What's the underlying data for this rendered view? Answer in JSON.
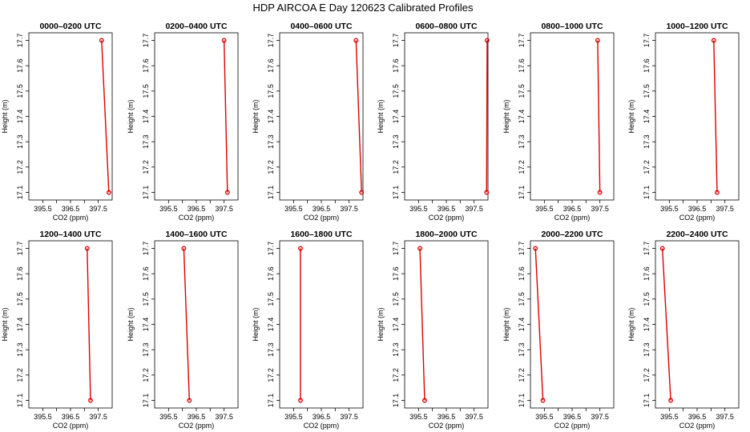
{
  "title": "HDP AIRCOA E  Day 120623  Calibrated Profiles",
  "colors": {
    "series": "#dd0000",
    "axis": "#000000"
  },
  "chart_data": [
    {
      "type": "line",
      "title": "0000–0200 UTC",
      "xlabel": "CO2 (ppm)",
      "ylabel": "Height (m)",
      "xlim": [
        395.0,
        398.0
      ],
      "ylim": [
        17.07,
        17.73
      ],
      "xticks": [
        "395.5",
        "396.5",
        "397.5"
      ],
      "yticks": [
        "17.1",
        "17.2",
        "17.3",
        "17.4",
        "17.5",
        "17.6",
        "17.7"
      ],
      "points": [
        {
          "x": 397.88,
          "y": 17.1
        },
        {
          "x": 397.62,
          "y": 17.7
        }
      ]
    },
    {
      "type": "line",
      "title": "0200–0400 UTC",
      "xlabel": "CO2 (ppm)",
      "ylabel": "Height (m)",
      "xlim": [
        395.0,
        398.0
      ],
      "ylim": [
        17.07,
        17.73
      ],
      "xticks": [
        "395.5",
        "396.5",
        "397.5"
      ],
      "yticks": [
        "17.1",
        "17.2",
        "17.3",
        "17.4",
        "17.5",
        "17.6",
        "17.7"
      ],
      "points": [
        {
          "x": 397.62,
          "y": 17.1
        },
        {
          "x": 397.5,
          "y": 17.7
        }
      ]
    },
    {
      "type": "line",
      "title": "0400–0600 UTC",
      "xlabel": "CO2 (ppm)",
      "ylabel": "Height (m)",
      "xlim": [
        395.0,
        398.0
      ],
      "ylim": [
        17.07,
        17.73
      ],
      "xticks": [
        "395.5",
        "396.5",
        "397.5"
      ],
      "yticks": [
        "17.1",
        "17.2",
        "17.3",
        "17.4",
        "17.5",
        "17.6",
        "17.7"
      ],
      "points": [
        {
          "x": 397.95,
          "y": 17.1
        },
        {
          "x": 397.75,
          "y": 17.7
        }
      ]
    },
    {
      "type": "line",
      "title": "0600–0800 UTC",
      "xlabel": "CO2 (ppm)",
      "ylabel": "Height (m)",
      "xlim": [
        395.0,
        398.0
      ],
      "ylim": [
        17.07,
        17.73
      ],
      "xticks": [
        "395.5",
        "396.5",
        "397.5"
      ],
      "yticks": [
        "17.1",
        "17.2",
        "17.3",
        "17.4",
        "17.5",
        "17.6",
        "17.7"
      ],
      "points": [
        {
          "x": 397.95,
          "y": 17.1
        },
        {
          "x": 397.97,
          "y": 17.7
        }
      ]
    },
    {
      "type": "line",
      "title": "0800–1000 UTC",
      "xlabel": "CO2 (ppm)",
      "ylabel": "Height (m)",
      "xlim": [
        395.0,
        398.0
      ],
      "ylim": [
        17.07,
        17.73
      ],
      "xticks": [
        "395.5",
        "396.5",
        "397.5"
      ],
      "yticks": [
        "17.1",
        "17.2",
        "17.3",
        "17.4",
        "17.5",
        "17.6",
        "17.7"
      ],
      "points": [
        {
          "x": 397.5,
          "y": 17.1
        },
        {
          "x": 397.42,
          "y": 17.7
        }
      ]
    },
    {
      "type": "line",
      "title": "1000–1200 UTC",
      "xlabel": "CO2 (ppm)",
      "ylabel": "Height (m)",
      "xlim": [
        395.0,
        398.0
      ],
      "ylim": [
        17.07,
        17.73
      ],
      "xticks": [
        "395.5",
        "396.5",
        "397.5"
      ],
      "yticks": [
        "17.1",
        "17.2",
        "17.3",
        "17.4",
        "17.5",
        "17.6",
        "17.7"
      ],
      "points": [
        {
          "x": 397.22,
          "y": 17.1
        },
        {
          "x": 397.1,
          "y": 17.7
        }
      ]
    },
    {
      "type": "line",
      "title": "1200–1400 UTC",
      "xlabel": "CO2 (ppm)",
      "ylabel": "Height (m)",
      "xlim": [
        395.0,
        398.0
      ],
      "ylim": [
        17.07,
        17.73
      ],
      "xticks": [
        "395.5",
        "396.5",
        "397.5"
      ],
      "yticks": [
        "17.1",
        "17.2",
        "17.3",
        "17.4",
        "17.5",
        "17.6",
        "17.7"
      ],
      "points": [
        {
          "x": 397.22,
          "y": 17.1
        },
        {
          "x": 397.1,
          "y": 17.7
        }
      ]
    },
    {
      "type": "line",
      "title": "1400–1600 UTC",
      "xlabel": "CO2 (ppm)",
      "ylabel": "Height (m)",
      "xlim": [
        395.0,
        398.0
      ],
      "ylim": [
        17.07,
        17.73
      ],
      "xticks": [
        "395.5",
        "396.5",
        "397.5"
      ],
      "yticks": [
        "17.1",
        "17.2",
        "17.3",
        "17.4",
        "17.5",
        "17.6",
        "17.7"
      ],
      "points": [
        {
          "x": 396.25,
          "y": 17.1
        },
        {
          "x": 396.05,
          "y": 17.7
        }
      ]
    },
    {
      "type": "line",
      "title": "1600–1800 UTC",
      "xlabel": "CO2 (ppm)",
      "ylabel": "Height (m)",
      "xlim": [
        395.0,
        398.0
      ],
      "ylim": [
        17.07,
        17.73
      ],
      "xticks": [
        "395.5",
        "396.5",
        "397.5"
      ],
      "yticks": [
        "17.1",
        "17.2",
        "17.3",
        "17.4",
        "17.5",
        "17.6",
        "17.7"
      ],
      "points": [
        {
          "x": 395.75,
          "y": 17.1
        },
        {
          "x": 395.75,
          "y": 17.7
        }
      ]
    },
    {
      "type": "line",
      "title": "1800–2000 UTC",
      "xlabel": "CO2 (ppm)",
      "ylabel": "Height (m)",
      "xlim": [
        395.0,
        398.0
      ],
      "ylim": [
        17.07,
        17.73
      ],
      "xticks": [
        "395.5",
        "396.5",
        "397.5"
      ],
      "yticks": [
        "17.1",
        "17.2",
        "17.3",
        "17.4",
        "17.5",
        "17.6",
        "17.7"
      ],
      "points": [
        {
          "x": 395.72,
          "y": 17.1
        },
        {
          "x": 395.55,
          "y": 17.7
        }
      ]
    },
    {
      "type": "line",
      "title": "2000–2200 UTC",
      "xlabel": "CO2 (ppm)",
      "ylabel": "Height (m)",
      "xlim": [
        395.0,
        398.0
      ],
      "ylim": [
        17.07,
        17.73
      ],
      "xticks": [
        "395.5",
        "396.5",
        "397.5"
      ],
      "yticks": [
        "17.1",
        "17.2",
        "17.3",
        "17.4",
        "17.5",
        "17.6",
        "17.7"
      ],
      "points": [
        {
          "x": 395.45,
          "y": 17.1
        },
        {
          "x": 395.18,
          "y": 17.7
        }
      ]
    },
    {
      "type": "line",
      "title": "2200–2400 UTC",
      "xlabel": "CO2 (ppm)",
      "ylabel": "Height (m)",
      "xlim": [
        395.0,
        398.0
      ],
      "ylim": [
        17.07,
        17.73
      ],
      "xticks": [
        "395.5",
        "396.5",
        "397.5"
      ],
      "yticks": [
        "17.1",
        "17.2",
        "17.3",
        "17.4",
        "17.5",
        "17.6",
        "17.7"
      ],
      "points": [
        {
          "x": 395.55,
          "y": 17.1
        },
        {
          "x": 395.25,
          "y": 17.7
        }
      ]
    }
  ]
}
